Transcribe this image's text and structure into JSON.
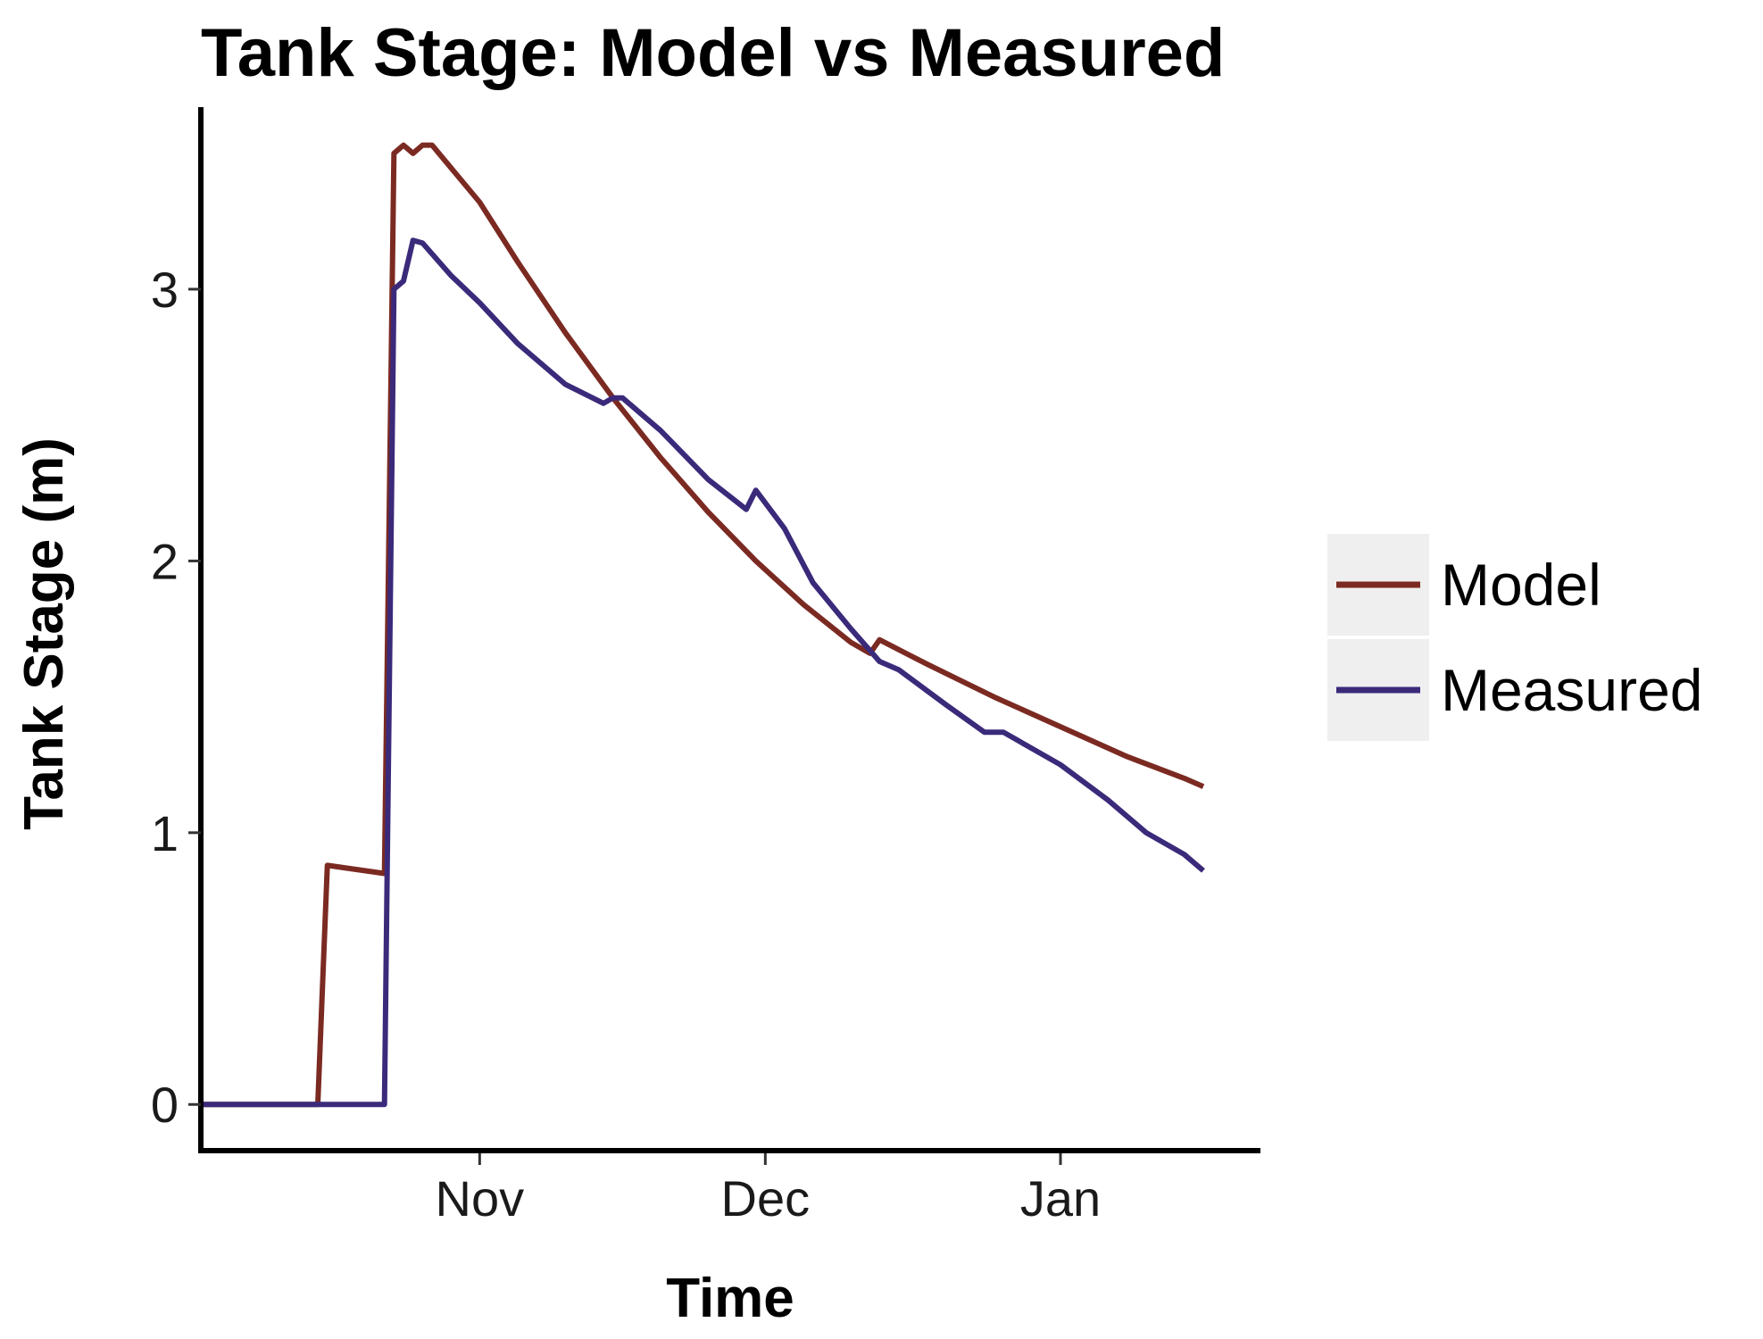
{
  "chart_data": {
    "type": "line",
    "title": "Tank Stage: Model vs Measured",
    "xlabel": "Time",
    "ylabel": "Tank Stage (m)",
    "x_ticks": [
      {
        "label": "Nov",
        "date": "2023-11-01"
      },
      {
        "label": "Dec",
        "date": "2023-12-01"
      },
      {
        "label": "Jan",
        "date": "2024-01-01"
      }
    ],
    "y_ticks": [
      0,
      1,
      2,
      3
    ],
    "xlim": [
      "2023-10-03",
      "2024-01-22"
    ],
    "ylim": [
      -0.17,
      3.67
    ],
    "grid": false,
    "legend_position": "right",
    "series": [
      {
        "name": "Model",
        "color": "#7b2a22",
        "points": [
          [
            "2023-10-03",
            0
          ],
          [
            "2023-10-15",
            0
          ],
          [
            "2023-10-16",
            0.88
          ],
          [
            "2023-10-22",
            0.85
          ],
          [
            "2023-10-23",
            3.5
          ],
          [
            "2023-10-24",
            3.53
          ],
          [
            "2023-10-25",
            3.5
          ],
          [
            "2023-10-26",
            3.53
          ],
          [
            "2023-10-27",
            3.53
          ],
          [
            "2023-11-01",
            3.32
          ],
          [
            "2023-11-05",
            3.1
          ],
          [
            "2023-11-10",
            2.84
          ],
          [
            "2023-11-15",
            2.6
          ],
          [
            "2023-11-20",
            2.38
          ],
          [
            "2023-11-25",
            2.18
          ],
          [
            "2023-11-30",
            2.0
          ],
          [
            "2023-12-05",
            1.84
          ],
          [
            "2023-12-10",
            1.7
          ],
          [
            "2023-12-12",
            1.66
          ],
          [
            "2023-12-13",
            1.71
          ],
          [
            "2023-12-18",
            1.62
          ],
          [
            "2023-12-25",
            1.5
          ],
          [
            "2024-01-01",
            1.39
          ],
          [
            "2024-01-08",
            1.28
          ],
          [
            "2024-01-14",
            1.2
          ],
          [
            "2024-01-16",
            1.17
          ]
        ]
      },
      {
        "name": "Measured",
        "color": "#3b2a7a",
        "points": [
          [
            "2023-10-03",
            0
          ],
          [
            "2023-10-22",
            0
          ],
          [
            "2023-10-23",
            3.0
          ],
          [
            "2023-10-24",
            3.03
          ],
          [
            "2023-10-25",
            3.18
          ],
          [
            "2023-10-26",
            3.17
          ],
          [
            "2023-10-29",
            3.05
          ],
          [
            "2023-11-01",
            2.95
          ],
          [
            "2023-11-05",
            2.8
          ],
          [
            "2023-11-10",
            2.65
          ],
          [
            "2023-11-14",
            2.58
          ],
          [
            "2023-11-15",
            2.6
          ],
          [
            "2023-11-16",
            2.6
          ],
          [
            "2023-11-20",
            2.48
          ],
          [
            "2023-11-25",
            2.3
          ],
          [
            "2023-11-29",
            2.19
          ],
          [
            "2023-11-30",
            2.26
          ],
          [
            "2023-12-03",
            2.12
          ],
          [
            "2023-12-06",
            1.92
          ],
          [
            "2023-12-10",
            1.75
          ],
          [
            "2023-12-13",
            1.63
          ],
          [
            "2023-12-15",
            1.6
          ],
          [
            "2023-12-20",
            1.47
          ],
          [
            "2023-12-24",
            1.37
          ],
          [
            "2023-12-26",
            1.37
          ],
          [
            "2024-01-01",
            1.25
          ],
          [
            "2024-01-06",
            1.12
          ],
          [
            "2024-01-10",
            1.0
          ],
          [
            "2024-01-14",
            0.92
          ],
          [
            "2024-01-16",
            0.86
          ]
        ]
      }
    ]
  }
}
